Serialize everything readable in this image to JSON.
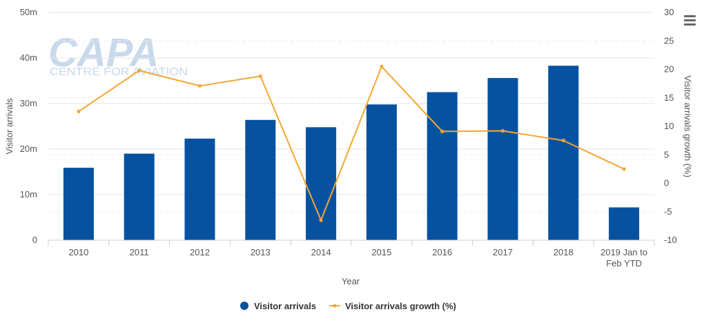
{
  "colors": {
    "bar": "#0652A1",
    "line": "#F5A631",
    "grid": "#E6E6E6",
    "axis_line": "#CCCCCC",
    "watermark": "#C9D9EC"
  },
  "watermark": {
    "logo": "CAPA",
    "tagline": "CENTRE FOR AVIATION"
  },
  "menu": {
    "icon": "hamburger-menu-icon"
  },
  "chart_data": {
    "type": "bar",
    "title": "",
    "xlabel": "Year",
    "ylabel": "Visitor arrivals",
    "y2label": "Visitor arrivals growth (%)",
    "categories": [
      [
        "2010"
      ],
      [
        "2011"
      ],
      [
        "2012"
      ],
      [
        "2013"
      ],
      [
        "2014"
      ],
      [
        "2015"
      ],
      [
        "2016"
      ],
      [
        "2017"
      ],
      [
        "2018"
      ],
      [
        "2019 Jan to",
        "Feb YTD"
      ]
    ],
    "ylim": [
      0,
      50
    ],
    "y_ticks": [
      {
        "value": 0,
        "label": "0"
      },
      {
        "value": 10,
        "label": "10m"
      },
      {
        "value": 20,
        "label": "20m"
      },
      {
        "value": 30,
        "label": "30m"
      },
      {
        "value": 40,
        "label": "40m"
      },
      {
        "value": 50,
        "label": "50m"
      }
    ],
    "y2lim": [
      -10,
      30
    ],
    "y2_ticks": [
      -10,
      -5,
      0,
      5,
      10,
      15,
      20,
      25,
      30
    ],
    "grid": true,
    "legend_position": "bottom-center",
    "series": [
      {
        "name": "Visitor arrivals",
        "type": "bar",
        "axis": "left",
        "unit": "m",
        "values": [
          15.9,
          19.0,
          22.3,
          26.4,
          24.8,
          29.8,
          32.5,
          35.6,
          38.3,
          7.2
        ]
      },
      {
        "name": "Visitor arrivals growth (%)",
        "type": "line",
        "axis": "right",
        "values": [
          12.6,
          19.8,
          17.1,
          18.8,
          -6.5,
          20.5,
          9.1,
          9.2,
          7.5,
          2.5
        ]
      }
    ]
  }
}
